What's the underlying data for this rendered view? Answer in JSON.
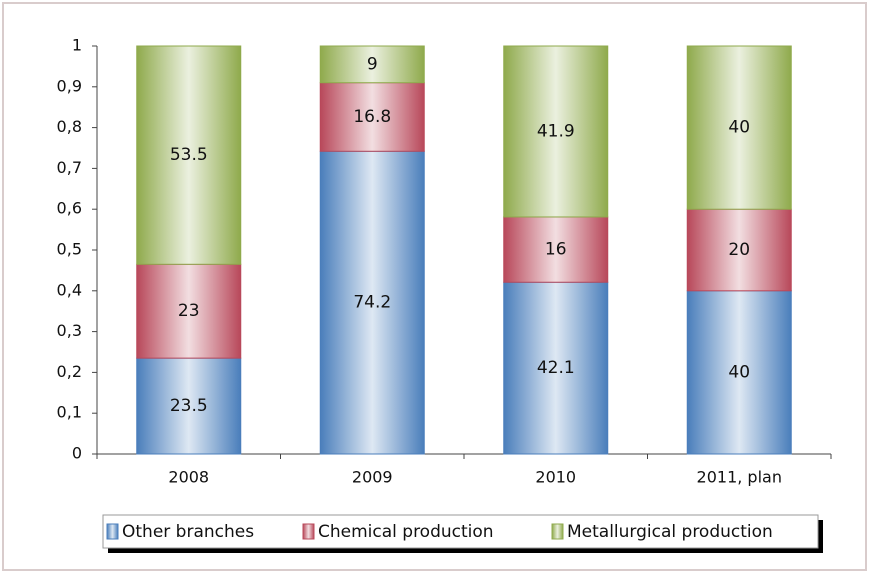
{
  "chart_data": {
    "type": "bar",
    "stacked": true,
    "categories": [
      "2008",
      "2009",
      "2010",
      "2011, plan"
    ],
    "series": [
      {
        "name": "Other branches",
        "color": "#4a7ebb",
        "values": [
          0.235,
          0.742,
          0.421,
          0.4
        ],
        "value_labels": [
          "23.5",
          "74.2",
          "42.1",
          "40"
        ]
      },
      {
        "name": "Chemical production",
        "color": "#b8485a",
        "values": [
          0.23,
          0.168,
          0.16,
          0.2
        ],
        "value_labels": [
          "23",
          "16.8",
          "16",
          "20"
        ]
      },
      {
        "name": "Metallurgical production",
        "color": "#8faa4c",
        "values": [
          0.535,
          0.09,
          0.419,
          0.4
        ],
        "value_labels": [
          "53.5",
          "9",
          "41.9",
          "40"
        ]
      }
    ],
    "ylim": [
      0,
      1
    ],
    "yticks": [
      0,
      {
        "value": 0.1,
        "label": "0,1"
      },
      {
        "value": 0.2,
        "label": "0,2"
      },
      {
        "value": 0.3,
        "label": "0,3"
      },
      {
        "value": 0.4,
        "label": "0,4"
      },
      {
        "value": 0.5,
        "label": "0,5"
      },
      {
        "value": 0.6,
        "label": "0,6"
      },
      {
        "value": 0.7,
        "label": "0,7"
      },
      {
        "value": 0.8,
        "label": "0,8"
      },
      {
        "value": 0.9,
        "label": "0,9"
      },
      1
    ],
    "grid": false,
    "legend": "bottom"
  }
}
